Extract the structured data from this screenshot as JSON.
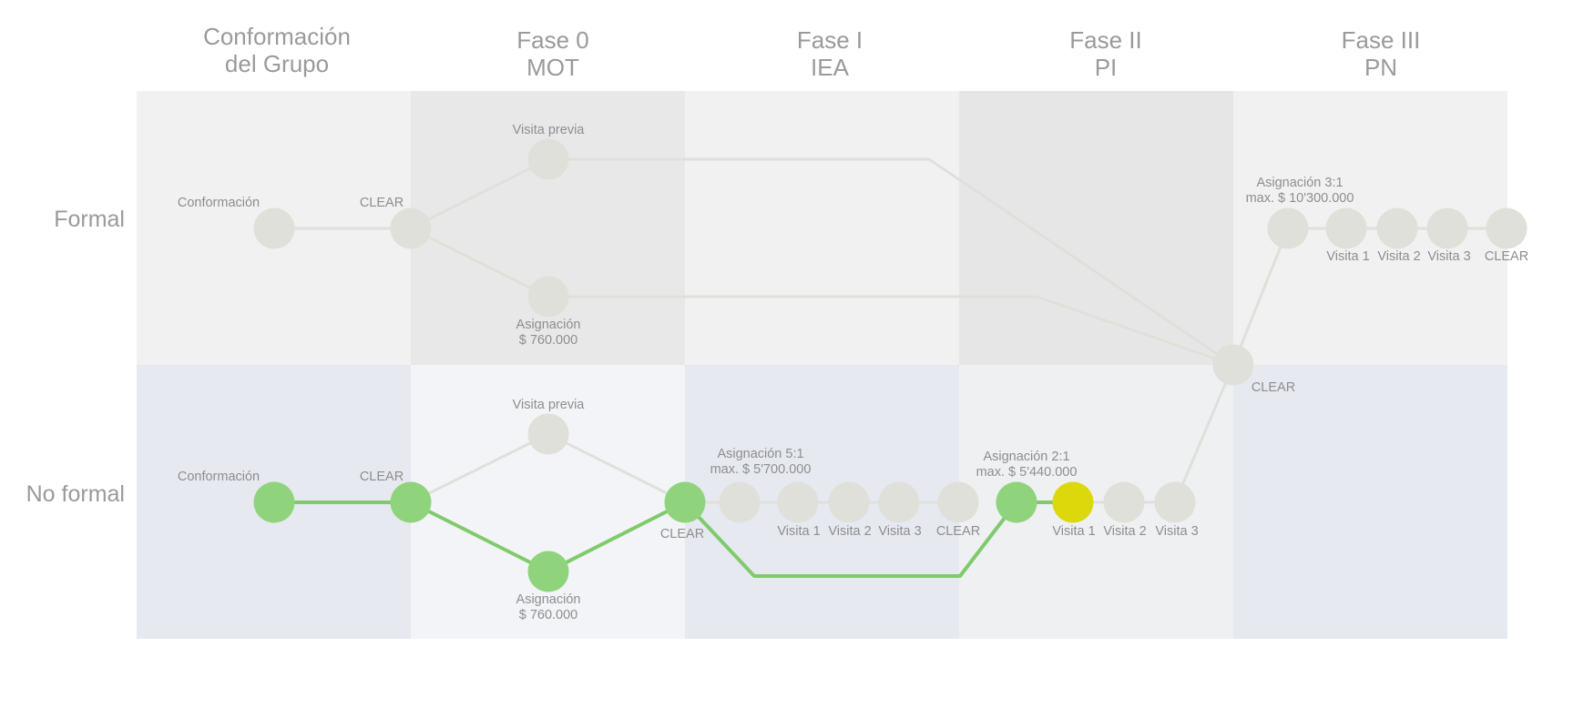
{
  "colors": {
    "inactive_node": "#e0e0da",
    "inactive_line": "#e0e0da",
    "active_node": "#8fd47c",
    "active_line": "#7fcb6c",
    "current_node": "#dcd80c",
    "bg_formal_light": "#f1f1f1",
    "bg_formal_dark": "#e8e8e8",
    "bg_noformal_blue": "#e7e9f1",
    "bg_noformal_light": "#f3f4f7",
    "bg_noformal_grey": "#eff0f2"
  },
  "phases": [
    {
      "line1": "Conformación",
      "line2": "del Grupo"
    },
    {
      "line1": "Fase 0",
      "line2": "MOT"
    },
    {
      "line1": "Fase I",
      "line2": "IEA"
    },
    {
      "line1": "Fase II",
      "line2": "PI"
    },
    {
      "line1": "Fase III",
      "line2": "PN"
    }
  ],
  "rows": {
    "formal": "Formal",
    "no_formal": "No formal"
  },
  "labels": {
    "f_conformacion": "Conformación",
    "f_clear": "CLEAR",
    "f_visita_previa": "Visita previa",
    "f_asignacion_1": "Asignación",
    "f_asignacion_2": "$ 760.000",
    "f3_asignacion_1": "Asignación 3:1",
    "f3_asignacion_2": "max. $ 10'300.000",
    "f3_visita1": "Visita 1",
    "f3_visita2": "Visita 2",
    "f3_visita3": "Visita 3",
    "f3_clear": "CLEAR",
    "junction_clear": "CLEAR",
    "n_conformacion": "Conformación",
    "n_clear": "CLEAR",
    "n_visita_previa": "Visita previa",
    "n_asignacion_1": "Asignación",
    "n_asignacion_2": "$ 760.000",
    "n_fase0_clear": "CLEAR",
    "n1_asignacion_1": "Asignación 5:1",
    "n1_asignacion_2": "max. $ 5'700.000",
    "n1_visita1": "Visita 1",
    "n1_visita2": "Visita 2",
    "n1_visita3": "Visita 3",
    "n1_clear": "CLEAR",
    "n2_asignacion_1": "Asignación 2:1",
    "n2_asignacion_2": "max. $ 5'440.000",
    "n2_visita1": "Visita 1",
    "n2_visita2": "Visita 2",
    "n2_visita3": "Visita 3"
  },
  "progress": {
    "completed_steps": [
      "Conformación",
      "CLEAR",
      "Asignación",
      "CLEAR",
      "Asignación 2:1"
    ],
    "current_step": "Visita 1"
  }
}
